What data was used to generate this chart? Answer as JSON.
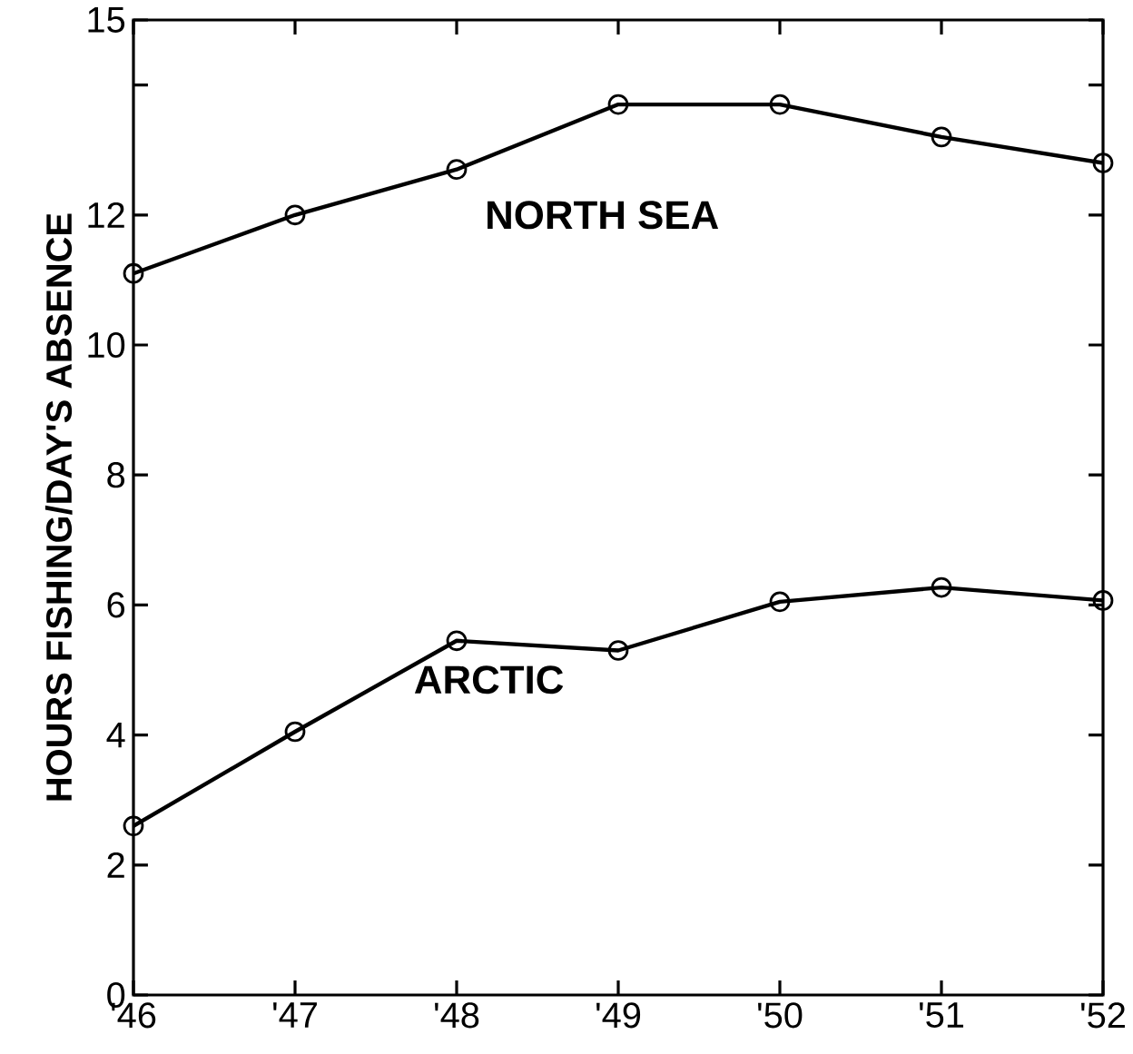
{
  "chart_data": {
    "type": "line",
    "ylabel": "HOURS FISHING/DAY'S ABSENCE",
    "categories": [
      "'46",
      "'47",
      "'48",
      "'49",
      "'50",
      "'51",
      "'52"
    ],
    "series": [
      {
        "name": "NORTH SEA",
        "color": "#000000",
        "values": [
          11.1,
          12.0,
          12.7,
          13.7,
          13.7,
          13.2,
          12.8
        ]
      },
      {
        "name": "ARCTIC",
        "color": "#000000",
        "values": [
          2.6,
          4.05,
          5.45,
          5.3,
          6.05,
          6.27,
          6.07
        ]
      }
    ],
    "ylim": [
      0,
      15
    ],
    "yticks": [
      0,
      2,
      4,
      6,
      8,
      10,
      12,
      {
        "value": 14,
        "label": null
      },
      15
    ],
    "marker": "circle",
    "line_style": "solid",
    "grid": false,
    "legend": false
  }
}
